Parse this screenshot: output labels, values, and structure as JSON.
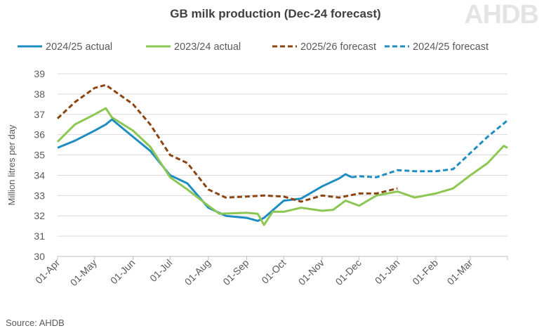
{
  "chart_data": {
    "type": "line",
    "title": "GB milk production (Dec-24 forecast)",
    "ylabel": "Million litres per day",
    "xlabel": "",
    "ylim": [
      30,
      39
    ],
    "yticks": [
      30,
      31,
      32,
      33,
      34,
      35,
      36,
      37,
      38,
      39
    ],
    "xlim": [
      "2024-04-01",
      "2025-03-31"
    ],
    "xticks": [
      {
        "date": "2024-04-01",
        "label": "01-Apr"
      },
      {
        "date": "2024-05-01",
        "label": "01-May"
      },
      {
        "date": "2024-06-01",
        "label": "01-Jun"
      },
      {
        "date": "2024-07-01",
        "label": "01-Jul"
      },
      {
        "date": "2024-08-01",
        "label": "01-Aug"
      },
      {
        "date": "2024-09-01",
        "label": "01-Sep"
      },
      {
        "date": "2024-10-01",
        "label": "01-Oct"
      },
      {
        "date": "2024-11-01",
        "label": "01-Nov"
      },
      {
        "date": "2024-12-01",
        "label": "01-Dec"
      },
      {
        "date": "2025-01-01",
        "label": "01-Jan"
      },
      {
        "date": "2025-02-01",
        "label": "01-Feb"
      },
      {
        "date": "2025-03-01",
        "label": "01-Mar"
      }
    ],
    "grid": "horizontal",
    "legend": "top",
    "series": [
      {
        "name": "2024/25 actual",
        "color": "#1f8dc1",
        "dash": false,
        "points": [
          [
            "2024-04-01",
            35.35
          ],
          [
            "2024-04-15",
            35.7
          ],
          [
            "2024-05-01",
            36.2
          ],
          [
            "2024-05-10",
            36.5
          ],
          [
            "2024-05-15",
            36.75
          ],
          [
            "2024-06-01",
            35.9
          ],
          [
            "2024-06-15",
            35.2
          ],
          [
            "2024-07-01",
            34.0
          ],
          [
            "2024-07-15",
            33.6
          ],
          [
            "2024-08-01",
            32.4
          ],
          [
            "2024-08-15",
            32.0
          ],
          [
            "2024-09-01",
            31.9
          ],
          [
            "2024-09-10",
            31.75
          ],
          [
            "2024-09-15",
            31.9
          ],
          [
            "2024-10-01",
            32.75
          ],
          [
            "2024-10-15",
            32.85
          ],
          [
            "2024-11-01",
            33.45
          ],
          [
            "2024-11-15",
            33.85
          ],
          [
            "2024-11-20",
            34.05
          ],
          [
            "2024-11-25",
            33.9
          ]
        ]
      },
      {
        "name": "2023/24 actual",
        "color": "#8cc653",
        "dash": false,
        "points": [
          [
            "2024-04-01",
            35.65
          ],
          [
            "2024-04-15",
            36.5
          ],
          [
            "2024-05-01",
            37.0
          ],
          [
            "2024-05-10",
            37.3
          ],
          [
            "2024-05-15",
            36.85
          ],
          [
            "2024-06-01",
            36.2
          ],
          [
            "2024-06-15",
            35.4
          ],
          [
            "2024-07-01",
            33.9
          ],
          [
            "2024-07-15",
            33.3
          ],
          [
            "2024-08-01",
            32.5
          ],
          [
            "2024-08-10",
            32.1
          ],
          [
            "2024-09-01",
            32.15
          ],
          [
            "2024-09-10",
            32.1
          ],
          [
            "2024-09-15",
            31.55
          ],
          [
            "2024-09-22",
            32.2
          ],
          [
            "2024-10-01",
            32.2
          ],
          [
            "2024-10-15",
            32.4
          ],
          [
            "2024-11-01",
            32.25
          ],
          [
            "2024-11-10",
            32.3
          ],
          [
            "2024-11-20",
            32.75
          ],
          [
            "2024-12-01",
            32.5
          ],
          [
            "2024-12-15",
            33.0
          ],
          [
            "2025-01-01",
            33.2
          ],
          [
            "2025-01-15",
            32.9
          ],
          [
            "2025-02-01",
            33.1
          ],
          [
            "2025-02-15",
            33.35
          ],
          [
            "2025-03-01",
            34.0
          ],
          [
            "2025-03-15",
            34.6
          ],
          [
            "2025-03-28",
            35.45
          ],
          [
            "2025-03-31",
            35.35
          ]
        ]
      },
      {
        "name": "2025/26 forecast",
        "color": "#8b4513",
        "dash": true,
        "points": [
          [
            "2024-04-01",
            36.8
          ],
          [
            "2024-04-15",
            37.6
          ],
          [
            "2024-05-01",
            38.3
          ],
          [
            "2024-05-10",
            38.45
          ],
          [
            "2024-06-01",
            37.5
          ],
          [
            "2024-06-15",
            36.5
          ],
          [
            "2024-07-01",
            35.0
          ],
          [
            "2024-07-15",
            34.6
          ],
          [
            "2024-08-01",
            33.3
          ],
          [
            "2024-08-15",
            32.9
          ],
          [
            "2024-09-01",
            32.95
          ],
          [
            "2024-09-15",
            33.0
          ],
          [
            "2024-10-01",
            32.95
          ],
          [
            "2024-10-15",
            32.7
          ],
          [
            "2024-11-01",
            33.0
          ],
          [
            "2024-11-15",
            32.9
          ],
          [
            "2024-12-01",
            33.1
          ],
          [
            "2024-12-15",
            33.1
          ],
          [
            "2025-01-01",
            33.35
          ]
        ]
      },
      {
        "name": "2024/25 forecast",
        "color": "#1f8dc1",
        "dash": true,
        "points": [
          [
            "2024-11-25",
            33.9
          ],
          [
            "2024-12-01",
            33.95
          ],
          [
            "2024-12-15",
            33.9
          ],
          [
            "2025-01-01",
            34.25
          ],
          [
            "2025-01-15",
            34.2
          ],
          [
            "2025-02-01",
            34.2
          ],
          [
            "2025-02-15",
            34.3
          ],
          [
            "2025-03-01",
            35.1
          ],
          [
            "2025-03-15",
            35.9
          ],
          [
            "2025-03-31",
            36.7
          ]
        ]
      }
    ]
  },
  "logo_text": "AHDB",
  "source": "Source: AHDB"
}
